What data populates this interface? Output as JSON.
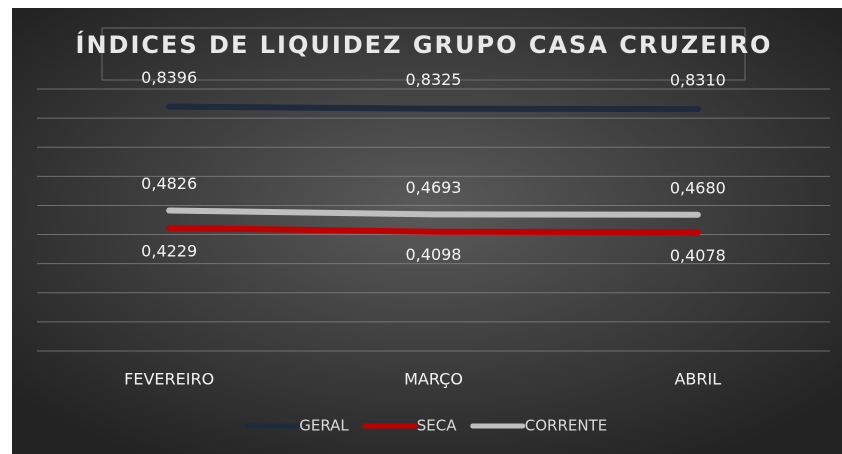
{
  "chart_data": {
    "type": "line",
    "title": "ÍNDICES DE LIQUIDEZ GRUPO CASA CRUZEIRO",
    "categories": [
      "FEVEREIRO",
      "MARÇO",
      "ABRIL"
    ],
    "series": [
      {
        "name": "GERAL",
        "color": "#1f2a3d",
        "values": [
          0.8396,
          0.8325,
          0.831
        ],
        "value_labels": [
          "0,8396",
          "0,8325",
          "0,8310"
        ]
      },
      {
        "name": "SECA",
        "color": "#c00000",
        "values": [
          0.4229,
          0.4098,
          0.4078
        ],
        "value_labels": [
          "0,4229",
          "0,4098",
          "0,4078"
        ]
      },
      {
        "name": "CORRENTE",
        "color": "#bfbfbf",
        "values": [
          0.4826,
          0.4693,
          0.468
        ],
        "value_labels": [
          "0,4826",
          "0,4693",
          "0,4680"
        ]
      }
    ],
    "ylim": [
      0,
      0.9
    ],
    "yticks": [
      0,
      0.1,
      0.2,
      0.3,
      0.4,
      0.5,
      0.6,
      0.7,
      0.8,
      0.9
    ],
    "grid": true,
    "legend": "bottom"
  }
}
